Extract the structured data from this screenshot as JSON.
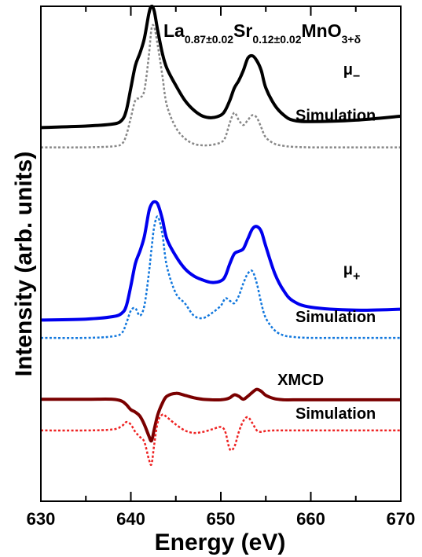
{
  "chart_data": {
    "type": "line",
    "title": {
      "parts": [
        {
          "text": "La",
          "sub": false
        },
        {
          "text": "0.87±0.02",
          "sub": true
        },
        {
          "text": "Sr",
          "sub": false
        },
        {
          "text": "0.12±0.02",
          "sub": true
        },
        {
          "text": "MnO",
          "sub": false
        },
        {
          "text": "3+δ",
          "sub": true
        }
      ]
    },
    "xlabel": "Energy (eV)",
    "ylabel": "Intensity (arb. units)",
    "xlim": [
      630,
      670
    ],
    "ylim": [
      0,
      1
    ],
    "xticks": [
      630,
      640,
      650,
      660,
      670
    ],
    "xtick_labels": [
      "630",
      "640",
      "650",
      "660",
      "670"
    ],
    "grid": false,
    "legend": "none",
    "annotations": [
      {
        "id": "mu-minus",
        "text": "μ",
        "sub": "−",
        "x": 663.6,
        "y": 0.862
      },
      {
        "id": "sim-1",
        "text": "Simulation",
        "x": 658.3,
        "y": 0.769
      },
      {
        "id": "mu-plus",
        "text": "μ",
        "sub": "+",
        "x": 663.6,
        "y": 0.458
      },
      {
        "id": "sim-2",
        "text": "Simulation",
        "x": 658.3,
        "y": 0.362
      },
      {
        "id": "xmcd",
        "text": "XMCD",
        "x": 656.3,
        "y": 0.235
      },
      {
        "id": "sim-3",
        "text": "Simulation",
        "x": 658.3,
        "y": 0.167
      }
    ],
    "series": [
      {
        "color": "#000000",
        "dash": false,
        "x": [
          630,
          635,
          638,
          639,
          639.5,
          640,
          640.5,
          641,
          641.5,
          642,
          642.3,
          642.6,
          643,
          643.5,
          644,
          645,
          646,
          647,
          648,
          649,
          650,
          650.5,
          651,
          651.5,
          652,
          652.5,
          653,
          653.5,
          654,
          654.5,
          655,
          656,
          657,
          658,
          660,
          665,
          670
        ],
        "y": [
          0.755,
          0.758,
          0.762,
          0.77,
          0.79,
          0.835,
          0.88,
          0.905,
          0.935,
          0.985,
          1.0,
          0.99,
          0.95,
          0.905,
          0.875,
          0.84,
          0.81,
          0.79,
          0.778,
          0.775,
          0.78,
          0.79,
          0.81,
          0.835,
          0.85,
          0.87,
          0.895,
          0.9,
          0.89,
          0.87,
          0.835,
          0.8,
          0.78,
          0.77,
          0.767,
          0.77,
          0.778
        ]
      },
      {
        "color": "#888888",
        "dash": true,
        "x": [
          630,
          635,
          638,
          639,
          639.5,
          640,
          640.5,
          641,
          641.5,
          642,
          642.3,
          642.6,
          643,
          643.5,
          644,
          645,
          646,
          647,
          648,
          649,
          650,
          650.5,
          651,
          651.5,
          652,
          652.5,
          653,
          653.5,
          654,
          654.5,
          655,
          656,
          657,
          658,
          660,
          665,
          670
        ],
        "y": [
          0.715,
          0.715,
          0.717,
          0.722,
          0.74,
          0.775,
          0.81,
          0.815,
          0.83,
          0.9,
          0.955,
          0.958,
          0.92,
          0.86,
          0.8,
          0.755,
          0.733,
          0.722,
          0.719,
          0.72,
          0.725,
          0.735,
          0.765,
          0.785,
          0.77,
          0.76,
          0.77,
          0.78,
          0.775,
          0.755,
          0.735,
          0.722,
          0.718,
          0.716,
          0.715,
          0.715,
          0.715
        ]
      },
      {
        "color": "#0000ee",
        "dash": false,
        "x": [
          630,
          635,
          638,
          639,
          639.5,
          640,
          640.5,
          641,
          641.5,
          642,
          642.3,
          642.6,
          643,
          643.5,
          644,
          645,
          646,
          647,
          648,
          649,
          650,
          650.5,
          651,
          651.5,
          652,
          652.5,
          653,
          653.5,
          654,
          654.5,
          655,
          656,
          657,
          658,
          660,
          665,
          670
        ],
        "y": [
          0.366,
          0.368,
          0.373,
          0.38,
          0.395,
          0.435,
          0.48,
          0.505,
          0.535,
          0.585,
          0.6,
          0.605,
          0.6,
          0.57,
          0.53,
          0.495,
          0.47,
          0.455,
          0.447,
          0.442,
          0.445,
          0.455,
          0.48,
          0.5,
          0.505,
          0.51,
          0.53,
          0.55,
          0.555,
          0.545,
          0.515,
          0.46,
          0.425,
          0.405,
          0.392,
          0.386,
          0.388
        ]
      },
      {
        "color": "#1177dd",
        "dash": true,
        "x": [
          630,
          635,
          638,
          639,
          639.5,
          640,
          640.5,
          641,
          641.5,
          642,
          642.3,
          642.6,
          643,
          643.5,
          644,
          645,
          646,
          647,
          648,
          649,
          650,
          650.5,
          651,
          651.5,
          652,
          652.5,
          653,
          653.5,
          654,
          654.5,
          655,
          656,
          657,
          658,
          660,
          665,
          670
        ],
        "y": [
          0.33,
          0.33,
          0.333,
          0.34,
          0.36,
          0.385,
          0.39,
          0.375,
          0.395,
          0.46,
          0.51,
          0.555,
          0.575,
          0.54,
          0.475,
          0.42,
          0.4,
          0.375,
          0.37,
          0.38,
          0.395,
          0.41,
          0.405,
          0.4,
          0.415,
          0.44,
          0.46,
          0.465,
          0.44,
          0.4,
          0.37,
          0.345,
          0.335,
          0.332,
          0.33,
          0.33,
          0.33
        ]
      },
      {
        "color": "#7a0000",
        "dash": false,
        "x": [
          630,
          635,
          638,
          639,
          639.5,
          640,
          640.5,
          641,
          641.5,
          642,
          642.3,
          642.6,
          643,
          643.5,
          644,
          645,
          646,
          647,
          648,
          649,
          650,
          650.5,
          651,
          651.5,
          652,
          652.5,
          653,
          653.5,
          654,
          654.5,
          655,
          656,
          657,
          658,
          660,
          665,
          670
        ],
        "y": [
          0.206,
          0.206,
          0.206,
          0.202,
          0.195,
          0.185,
          0.18,
          0.172,
          0.155,
          0.132,
          0.122,
          0.145,
          0.175,
          0.198,
          0.212,
          0.218,
          0.214,
          0.209,
          0.206,
          0.205,
          0.205,
          0.206,
          0.209,
          0.215,
          0.212,
          0.206,
          0.212,
          0.22,
          0.226,
          0.222,
          0.214,
          0.207,
          0.205,
          0.205,
          0.205,
          0.205,
          0.205
        ]
      },
      {
        "color": "#ee2222",
        "dash": true,
        "x": [
          630,
          635,
          638,
          639,
          639.5,
          640,
          640.5,
          641,
          641.5,
          642,
          642.3,
          642.6,
          643,
          643.5,
          644,
          645,
          646,
          647,
          648,
          649,
          650,
          650.5,
          651,
          651.5,
          652,
          652.5,
          653,
          653.5,
          654,
          654.5,
          655,
          656,
          657,
          658,
          660,
          665,
          670
        ],
        "y": [
          0.143,
          0.143,
          0.145,
          0.152,
          0.16,
          0.155,
          0.14,
          0.13,
          0.12,
          0.085,
          0.075,
          0.115,
          0.16,
          0.175,
          0.17,
          0.155,
          0.143,
          0.138,
          0.14,
          0.145,
          0.15,
          0.14,
          0.105,
          0.11,
          0.14,
          0.162,
          0.17,
          0.158,
          0.143,
          0.14,
          0.142,
          0.143,
          0.143,
          0.143,
          0.143,
          0.143,
          0.143
        ]
      }
    ]
  }
}
